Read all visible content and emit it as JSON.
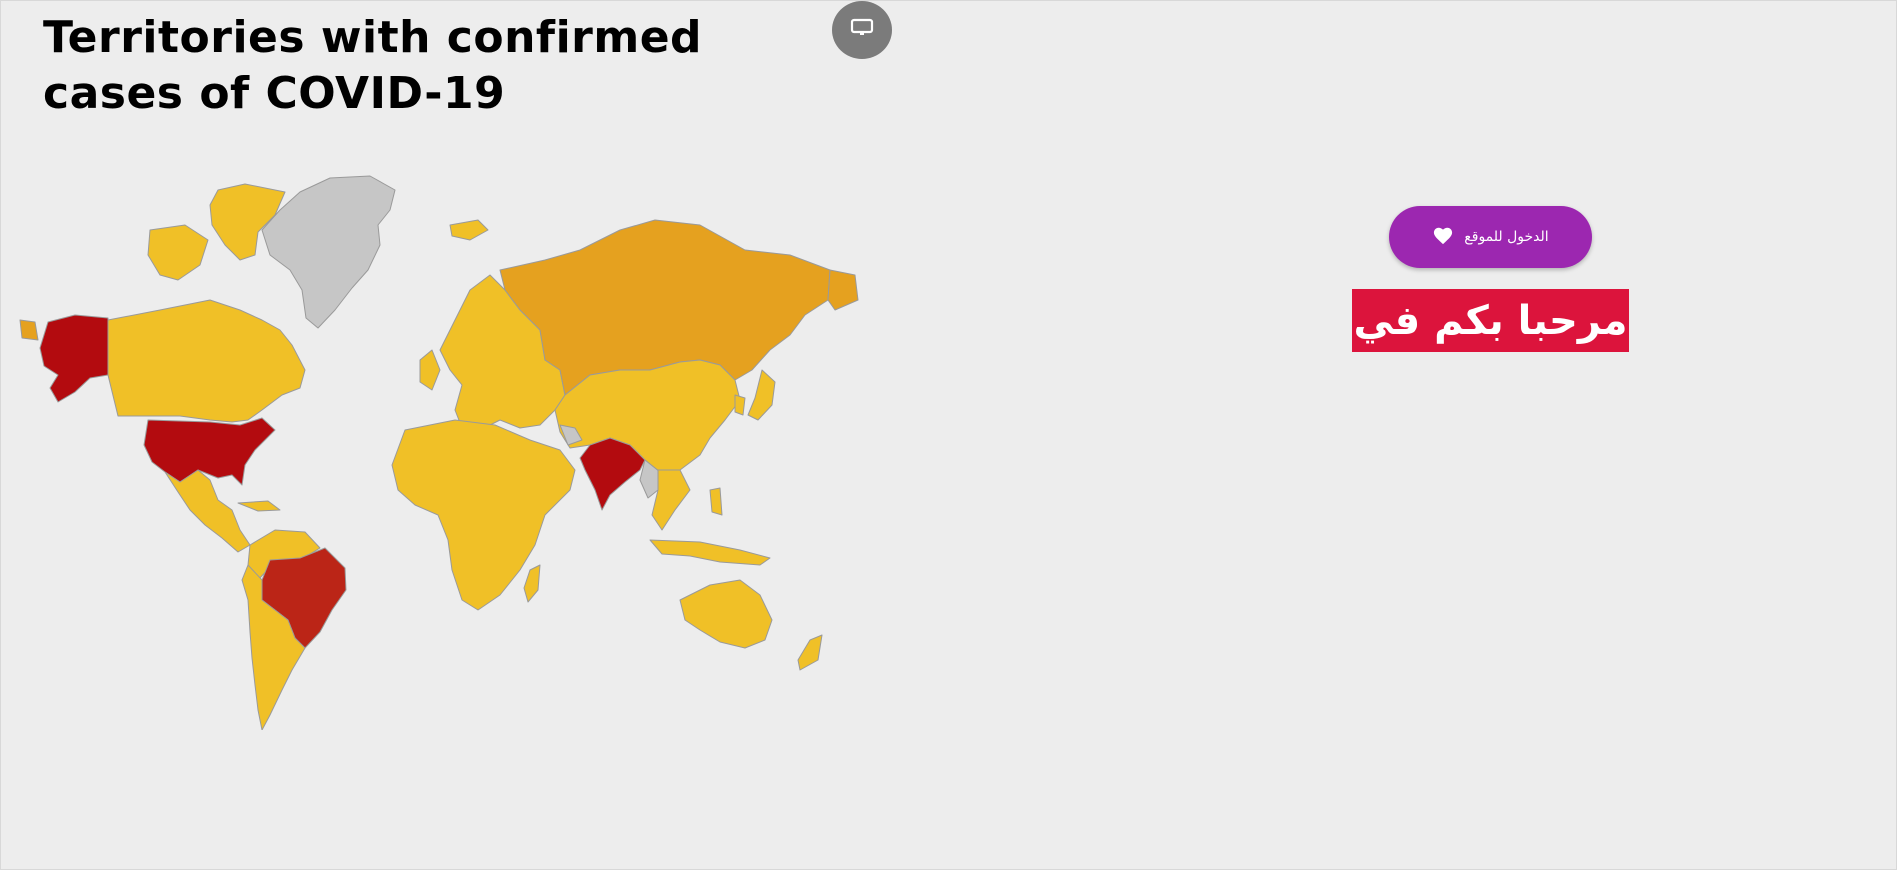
{
  "header": {
    "title": "Territories with confirmed cases of COVID-19"
  },
  "toolbar": {
    "present_icon": "presentation-monitor-icon"
  },
  "map": {
    "colors": {
      "low": "#f0c027",
      "medium": "#e5a11f",
      "high": "#bb2517",
      "very_high": "#b30b0f",
      "no_data": "#c6c6c6",
      "border": "#9a9a9a"
    }
  },
  "overlay": {
    "enter_button_label": "الدخول للموقع",
    "enter_button_icon": "heart-icon",
    "enter_button_color": "#9c27b0",
    "welcome_text": "مرحبا بكم في",
    "welcome_color": "#dc143c"
  }
}
